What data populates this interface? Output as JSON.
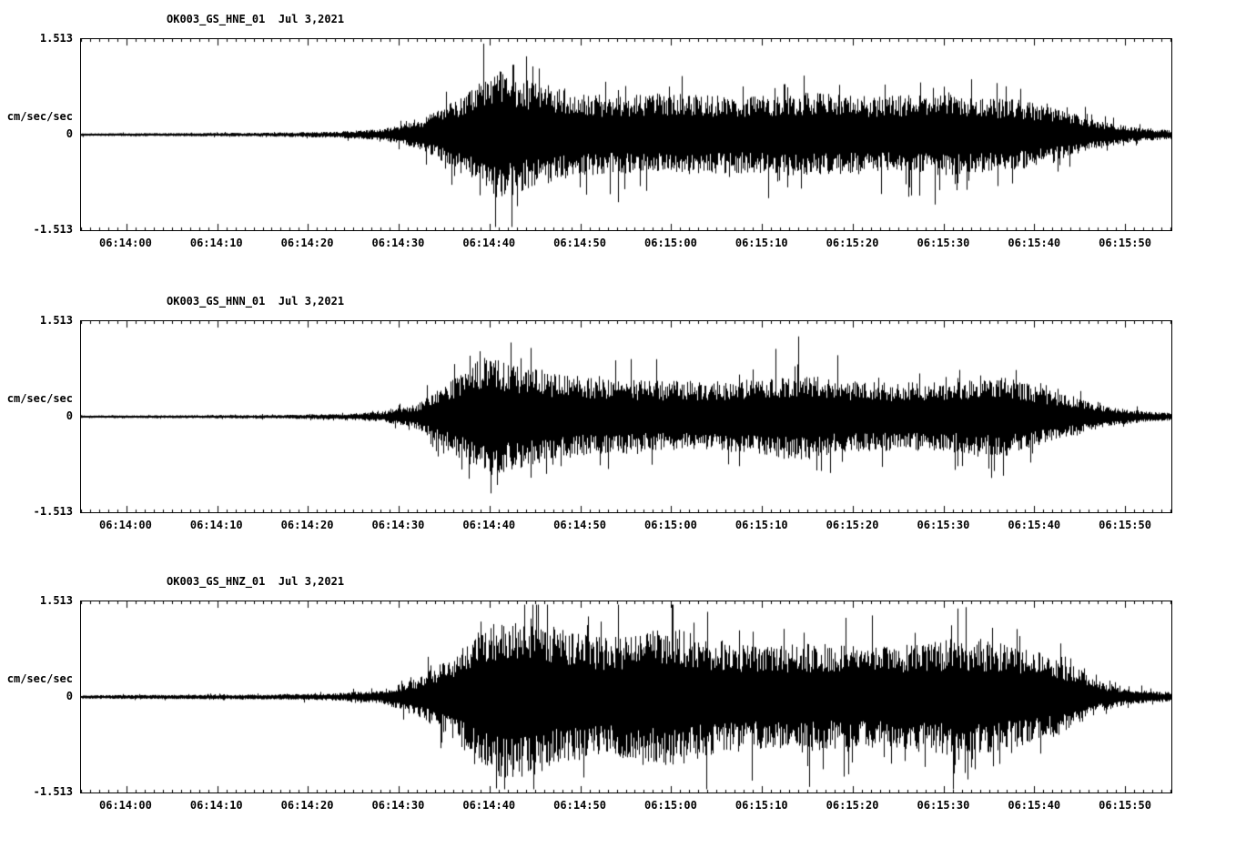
{
  "page": {
    "background": "#ffffff",
    "trace_color": "#000000"
  },
  "chart_data": {
    "type": "line",
    "subtype": "seismogram-3-channel-strong-motion",
    "station": "OK003",
    "date_label": "Jul 3,2021",
    "ylabel_unit": "cm/sec/sec",
    "ylim": [
      -1.513,
      1.513
    ],
    "yticks": [
      "1.513",
      "0",
      "-1.513"
    ],
    "x_start_time": "06:13:55",
    "x_end_time": "06:15:55",
    "x_duration_s": 120,
    "grid": false,
    "legend": "none",
    "xticks": [
      {
        "t": 5,
        "label": "06:14:00"
      },
      {
        "t": 15,
        "label": "06:14:10"
      },
      {
        "t": 25,
        "label": "06:14:20"
      },
      {
        "t": 35,
        "label": "06:14:30"
      },
      {
        "t": 45,
        "label": "06:14:40"
      },
      {
        "t": 55,
        "label": "06:14:50"
      },
      {
        "t": 65,
        "label": "06:15:00"
      },
      {
        "t": 75,
        "label": "06:15:10"
      },
      {
        "t": 85,
        "label": "06:15:20"
      },
      {
        "t": 95,
        "label": "06:15:30"
      },
      {
        "t": 105,
        "label": "06:15:40"
      },
      {
        "t": 115,
        "label": "06:15:50"
      }
    ],
    "panels": [
      {
        "channel": "OK003_GS_HNE_01",
        "title": "OK003_GS_HNE_01  Jul 3,2021",
        "seed": 1101,
        "envelope": [
          [
            0,
            0.022
          ],
          [
            20,
            0.03
          ],
          [
            28,
            0.05
          ],
          [
            33,
            0.09
          ],
          [
            37,
            0.22
          ],
          [
            40,
            0.45
          ],
          [
            43,
            0.8
          ],
          [
            46,
            1.05
          ],
          [
            49,
            0.9
          ],
          [
            53,
            0.75
          ],
          [
            58,
            0.62
          ],
          [
            65,
            0.68
          ],
          [
            72,
            0.62
          ],
          [
            80,
            0.68
          ],
          [
            88,
            0.62
          ],
          [
            95,
            0.66
          ],
          [
            100,
            0.6
          ],
          [
            104,
            0.55
          ],
          [
            108,
            0.4
          ],
          [
            112,
            0.22
          ],
          [
            116,
            0.12
          ],
          [
            120,
            0.07
          ]
        ]
      },
      {
        "channel": "OK003_GS_HNN_01",
        "title": "OK003_GS_HNN_01  Jul 3,2021",
        "seed": 2202,
        "envelope": [
          [
            0,
            0.02
          ],
          [
            20,
            0.028
          ],
          [
            28,
            0.045
          ],
          [
            33,
            0.08
          ],
          [
            37,
            0.2
          ],
          [
            40,
            0.5
          ],
          [
            43,
            0.85
          ],
          [
            45,
            1.0
          ],
          [
            48,
            0.85
          ],
          [
            52,
            0.7
          ],
          [
            57,
            0.62
          ],
          [
            63,
            0.58
          ],
          [
            70,
            0.58
          ],
          [
            75,
            0.62
          ],
          [
            79,
            0.72
          ],
          [
            83,
            0.6
          ],
          [
            90,
            0.55
          ],
          [
            96,
            0.58
          ],
          [
            101,
            0.68
          ],
          [
            105,
            0.5
          ],
          [
            109,
            0.32
          ],
          [
            113,
            0.16
          ],
          [
            117,
            0.09
          ],
          [
            120,
            0.06
          ]
        ]
      },
      {
        "channel": "OK003_GS_HNZ_01",
        "title": "OK003_GS_HNZ_01  Jul 3,2021",
        "seed": 3303,
        "envelope": [
          [
            0,
            0.03
          ],
          [
            20,
            0.04
          ],
          [
            28,
            0.06
          ],
          [
            33,
            0.11
          ],
          [
            37,
            0.3
          ],
          [
            41,
            0.7
          ],
          [
            44,
            1.1
          ],
          [
            47,
            1.4
          ],
          [
            50,
            1.25
          ],
          [
            54,
            1.05
          ],
          [
            58,
            0.95
          ],
          [
            62,
            1.05
          ],
          [
            65,
            1.15
          ],
          [
            69,
            0.95
          ],
          [
            74,
            0.85
          ],
          [
            80,
            0.88
          ],
          [
            86,
            0.8
          ],
          [
            91,
            0.85
          ],
          [
            96,
            0.95
          ],
          [
            100,
            0.9
          ],
          [
            104,
            0.8
          ],
          [
            107,
            0.65
          ],
          [
            110,
            0.45
          ],
          [
            112,
            0.25
          ],
          [
            115,
            0.13
          ],
          [
            118,
            0.09
          ],
          [
            120,
            0.08
          ]
        ]
      }
    ]
  }
}
